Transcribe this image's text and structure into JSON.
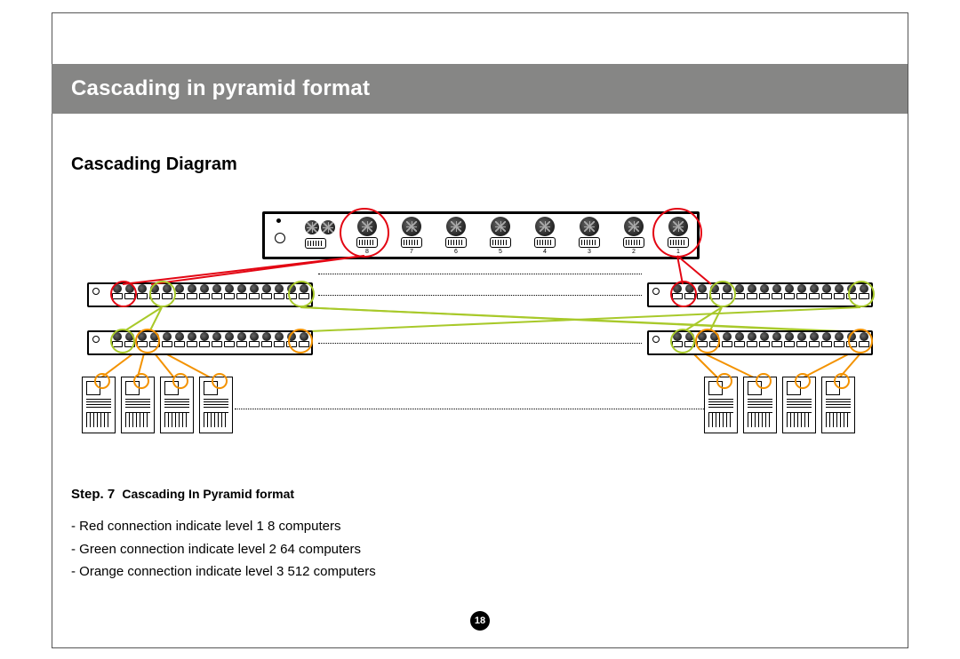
{
  "title": "Cascading in pyramid format",
  "subtitle": "Cascading  Diagram",
  "step_label": "Step. 7",
  "step_text": "Cascading  In Pyramid format",
  "legend": {
    "l1": "- Red connection indicate level 1  8 computers",
    "l2": "- Green connection indicate level 2  64 computers",
    "l3": "- Orange connection indicate level 3  512 computers"
  },
  "page_number": "18",
  "colors": {
    "title_bg": "#868685",
    "title_fg": "#ffffff",
    "red": "#e30613",
    "green": "#a8c92a",
    "orange": "#f39200",
    "black": "#000000",
    "white": "#ffffff"
  },
  "diagram": {
    "top_switch": {
      "port_numbers": [
        "8",
        "7",
        "6",
        "5",
        "4",
        "3",
        "2",
        "1"
      ]
    },
    "levels": {
      "l1_count": 8,
      "l2_count": 64,
      "l3_count": 512
    },
    "small_switches": {
      "ports_each": 16
    },
    "computers_per_side": 4
  }
}
